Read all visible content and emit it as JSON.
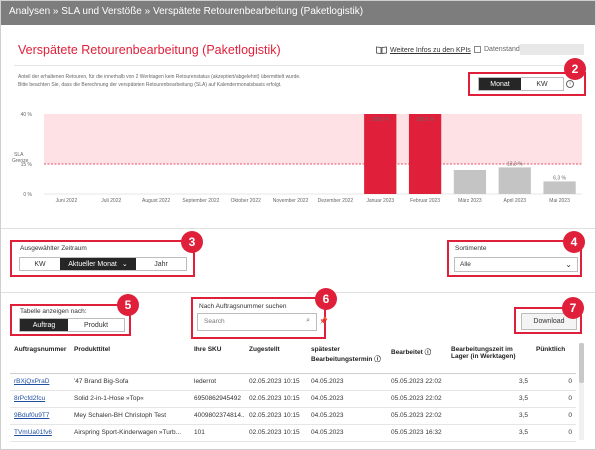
{
  "breadcrumb": "Analysen » SLA und Verstöße » Verspätete Retourenbearbeitung (Paketlogistik)",
  "page_title": "Verspätete Retourenbearbeitung (Paketlogistik)",
  "info_link": "Weitere Infos zu den KPIs",
  "date_label": "Datenstand:",
  "description_line1": "Anteil der erhaltenen Retouren, für die innerhalb von 2 Werktagen kein Retourenstatus (akzeptiert/abgelehnt) übermittelt wurde.",
  "description_line2": "Bitte beachten Sie, dass die Berechnung der verspäteten Retourenbearbeitung (SLA) auf Kalendermonatsbasis erfolgt.",
  "badges": {
    "b2": "2",
    "b3": "3",
    "b4": "4",
    "b5": "5",
    "b6": "6",
    "b7": "7"
  },
  "period_toggle": {
    "monat": "Monat",
    "kw": "KW",
    "info": "i"
  },
  "zeitraum": {
    "label": "Ausgewählter Zeitraum",
    "kw": "KW",
    "current": "Aktueller Monat",
    "chevron": "⌄",
    "jahr": "Jahr"
  },
  "sortimente": {
    "label": "Sortimente",
    "value": "Alle",
    "chevron": "⌄"
  },
  "tabelle": {
    "label": "Tabelle anzeigen nach:",
    "auftrag": "Auftrag",
    "produkt": "Produkt"
  },
  "search": {
    "label": "Nach Auftragsnummer suchen",
    "placeholder": "Search",
    "icon": "⌕",
    "pin": "📌"
  },
  "download_label": "Download",
  "chart_data": {
    "type": "bar",
    "categories": [
      "Juni 2022",
      "Juli 2022",
      "August 2022",
      "September 2022",
      "Oktober 2022",
      "November 2022",
      "Dezember 2022",
      "Januar 2023",
      "Februar 2023",
      "März 2023",
      "April 2023",
      "Mai 2023"
    ],
    "values": [
      null,
      null,
      null,
      null,
      null,
      null,
      null,
      100.0,
      100.0,
      12.0,
      13.3,
      6.3
    ],
    "data_labels": [
      "",
      "",
      "",
      "",
      "",
      "",
      "",
      "100,0 %",
      "100,0 %",
      "",
      "13,3 %",
      "6,3 %"
    ],
    "highlighted": [
      false,
      false,
      false,
      false,
      false,
      false,
      false,
      true,
      true,
      false,
      false,
      false
    ],
    "y_ticks": [
      {
        "label": "40 %",
        "value": 40
      },
      {
        "label": "15 %",
        "value": 15
      },
      {
        "label": "0 %",
        "value": 0
      }
    ],
    "y_max": 40,
    "sla_label_1": "SLA",
    "sla_label_2": "Grenze",
    "sla_value": 15,
    "colors": {
      "highlight": "#e0203a",
      "normal": "#c4c4c4",
      "zone": "#fde1e4",
      "sla_line": "#e0203a"
    }
  },
  "table": {
    "headers": [
      "Auftragsnummer",
      "Produkttitel",
      "Ihre SKU",
      "Zugestellt",
      "spätester Bearbeitungstermin ⓘ",
      "Bearbeitet ⓘ",
      "Bearbeitungszeit im Lager (in Werktagen)",
      "Pünktlich"
    ],
    "rows": [
      [
        "rBXjQxPraD",
        "'47 Brand Big-Sofa",
        "lederrot",
        "02.05.2023 10:15",
        "04.05.2023",
        "05.05.2023 22:02",
        "3,5",
        "0"
      ],
      [
        "8rPcfd2fcu",
        "Solid 2-in-1-Hose »Top«",
        "6950862945492",
        "02.05.2023 10:15",
        "04.05.2023",
        "05.05.2023 22:02",
        "3,5",
        "0"
      ],
      [
        "9Bduf0u9T7",
        "Mey Schalen-BH Christoph Test",
        "4009802374814...",
        "02.05.2023 10:15",
        "04.05.2023",
        "05.05.2023 22:02",
        "3,5",
        "0"
      ],
      [
        "TVmUa01fv6",
        "Airspring Sport-Kinderwagen »Turb...",
        "101",
        "02.05.2023 10:15",
        "04.05.2023",
        "05.05.2023 16:32",
        "3,5",
        "0"
      ]
    ]
  }
}
